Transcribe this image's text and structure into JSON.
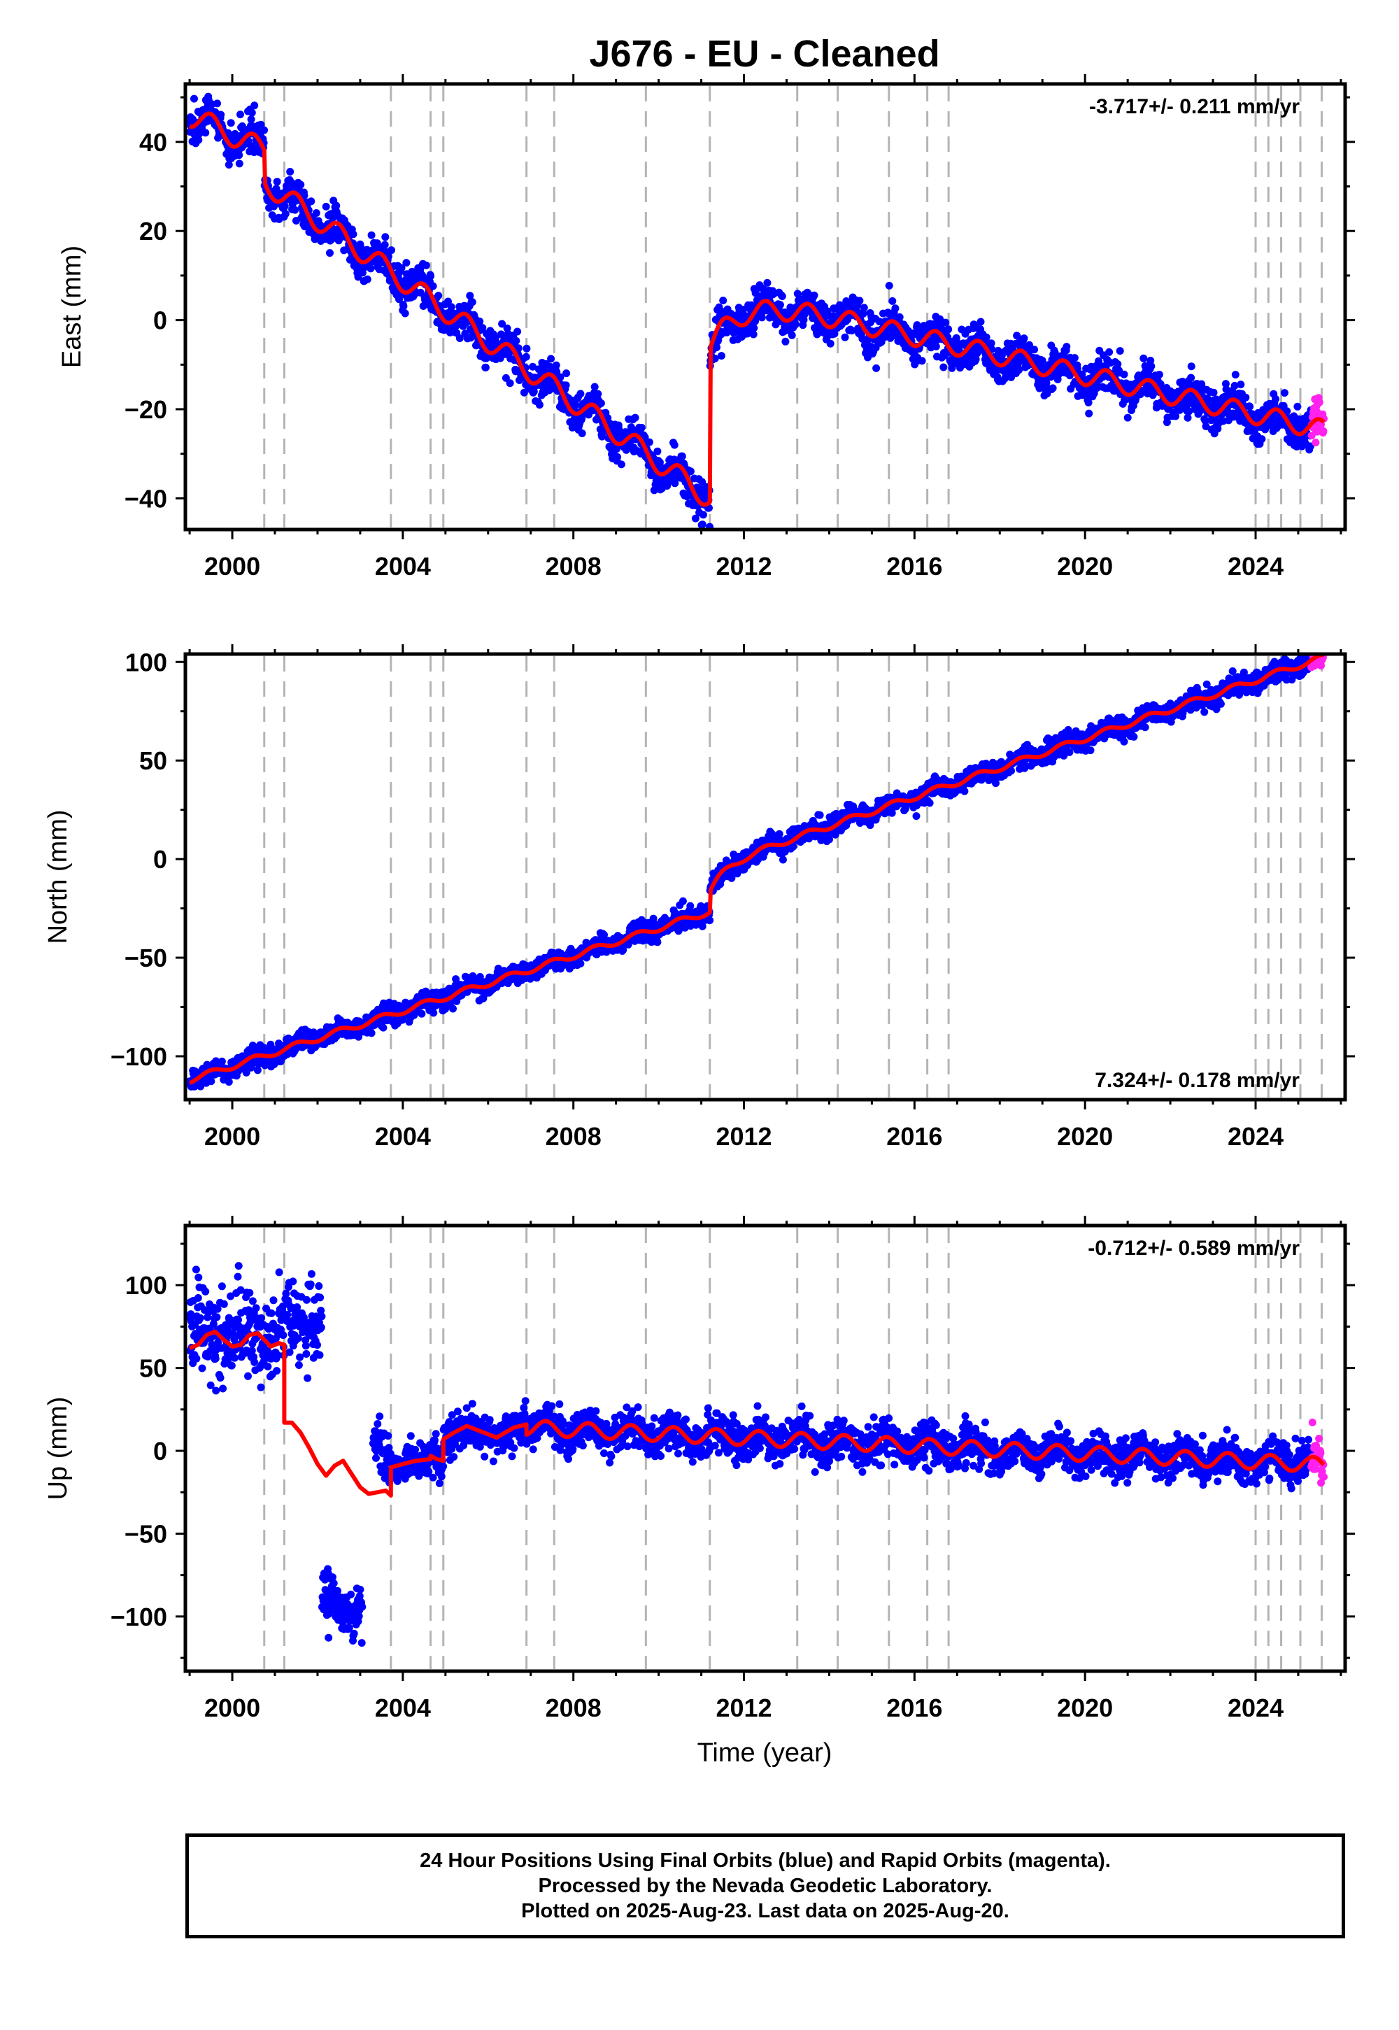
{
  "title": "J676  - EU - Cleaned",
  "colors": {
    "final_orbits": "#0000ff",
    "rapid_orbits": "#ff22ee",
    "model": "#ff0000",
    "break_lines": "#b4b4b4"
  },
  "chart_data": [
    {
      "type": "scatter",
      "panel": "east",
      "ylabel": "East (mm)",
      "xlabel": "",
      "rate_label": "-3.717+/- 0.211 mm/yr",
      "rate_label_position": "top-right",
      "xlim": [
        1998.9,
        2026.1
      ],
      "ylim": [
        -47,
        53
      ],
      "xticks": [
        2000,
        2004,
        2008,
        2012,
        2016,
        2020,
        2024
      ],
      "yticks": [
        40,
        20,
        0,
        -20,
        -40
      ],
      "ytick_labels": [
        "40",
        "20",
        "0",
        "−20",
        "−40"
      ],
      "grid": false,
      "breaks": [
        2000.75,
        2001.22,
        2003.72,
        2004.65,
        2004.95,
        2006.9,
        2007.55,
        2009.7,
        2011.2,
        2013.25,
        2014.2,
        2015.4,
        2016.3,
        2016.8,
        2024.0,
        2024.3,
        2024.6,
        2025.05,
        2025.55
      ],
      "model": [
        {
          "t0": 1999.0,
          "t1": 2000.75,
          "v0": 46,
          "rate": -4.5,
          "amp": 2.5
        },
        {
          "t0": 2000.75,
          "t1": 2011.2,
          "v0": 31,
          "rate": -6.8,
          "amp": 2.5
        },
        {
          "t0": 2011.2,
          "t1": 2025.6,
          "v0": -6,
          "rate": -2.2,
          "amp": 2.2,
          "postseismic_amp": 13,
          "postseismic_tau": 0.7
        }
      ],
      "final_orbits_last": 2025.3,
      "rapid_orbits": [
        2025.3,
        2025.6
      ],
      "noise": 2.2
    },
    {
      "type": "scatter",
      "panel": "north",
      "ylabel": "North (mm)",
      "xlabel": "",
      "rate_label": "7.324+/- 0.178 mm/yr",
      "rate_label_position": "bottom-right",
      "xlim": [
        1998.9,
        2026.1
      ],
      "ylim": [
        -122,
        104
      ],
      "xticks": [
        2000,
        2004,
        2008,
        2012,
        2016,
        2020,
        2024
      ],
      "yticks": [
        100,
        50,
        0,
        -50,
        -100
      ],
      "ytick_labels": [
        "100",
        "50",
        "0",
        "−50",
        "−100"
      ],
      "grid": false,
      "breaks": [
        2000.75,
        2001.22,
        2003.72,
        2004.65,
        2004.95,
        2006.9,
        2007.55,
        2009.7,
        2011.2,
        2013.25,
        2014.2,
        2015.4,
        2016.3,
        2016.8,
        2024.0,
        2024.3,
        2024.6,
        2025.05,
        2025.55
      ],
      "model": [
        {
          "t0": 1999.0,
          "t1": 2011.2,
          "v0": -112,
          "rate": 7.0,
          "amp": 1.5
        },
        {
          "t0": 2011.2,
          "t1": 2025.6,
          "v0": -16,
          "rate": 7.4,
          "amp": 1.5,
          "postseismic_amp": 12,
          "postseismic_tau": 0.4
        }
      ],
      "final_orbits_last": 2025.3,
      "rapid_orbits": [
        2025.3,
        2025.6
      ],
      "noise": 2.5
    },
    {
      "type": "scatter",
      "panel": "up",
      "ylabel": "Up (mm)",
      "xlabel": "Time (year)",
      "rate_label": "-0.712+/- 0.589 mm/yr",
      "rate_label_position": "top-right",
      "xlim": [
        1998.9,
        2026.1
      ],
      "ylim": [
        -133,
        136
      ],
      "xticks": [
        2000,
        2004,
        2008,
        2012,
        2016,
        2020,
        2024
      ],
      "yticks": [
        100,
        50,
        0,
        -50,
        -100
      ],
      "ytick_labels": [
        "100",
        "50",
        "0",
        "−50",
        "−100"
      ],
      "grid": false,
      "breaks": [
        2000.75,
        2001.22,
        2003.72,
        2004.65,
        2004.95,
        2006.9,
        2007.55,
        2009.7,
        2011.2,
        2013.25,
        2014.2,
        2015.4,
        2016.3,
        2016.8,
        2024.0,
        2024.3,
        2024.6,
        2025.05,
        2025.55
      ],
      "model_curve": [
        [
          1999.0,
          62
        ],
        [
          1999.2,
          64
        ],
        [
          1999.4,
          70
        ],
        [
          1999.6,
          72
        ],
        [
          1999.8,
          67
        ],
        [
          2000.0,
          63
        ],
        [
          2000.2,
          64
        ],
        [
          2000.4,
          70
        ],
        [
          2000.6,
          71
        ],
        [
          2000.75,
          67
        ],
        [
          2000.9,
          63
        ],
        [
          2001.1,
          65
        ],
        [
          2001.22,
          64
        ],
        [
          2001.22,
          17
        ],
        [
          2001.4,
          17
        ],
        [
          2001.6,
          11
        ],
        [
          2001.8,
          2
        ],
        [
          2002.0,
          -8
        ],
        [
          2002.2,
          -15
        ],
        [
          2002.4,
          -9
        ],
        [
          2002.6,
          -6
        ],
        [
          2002.8,
          -14
        ],
        [
          2003.0,
          -22
        ],
        [
          2003.2,
          -26
        ],
        [
          2003.4,
          -25
        ],
        [
          2003.6,
          -24
        ],
        [
          2003.72,
          -27
        ],
        [
          2003.72,
          -10
        ],
        [
          2004.0,
          -8
        ],
        [
          2004.3,
          -6
        ],
        [
          2004.65,
          -5
        ],
        [
          2004.65,
          -3
        ],
        [
          2004.8,
          -5
        ],
        [
          2004.95,
          -6
        ],
        [
          2004.95,
          7
        ],
        [
          2005.2,
          11
        ],
        [
          2005.5,
          15
        ],
        [
          2005.8,
          12
        ],
        [
          2006.2,
          8
        ],
        [
          2006.6,
          14
        ],
        [
          2006.9,
          16
        ]
      ],
      "model_tail": {
        "t0": 2006.9,
        "t1": 2025.6,
        "v0": 14,
        "rate": -1.2,
        "amp": 4.5
      },
      "gap": [
        2003.72,
        2003.72
      ],
      "segments": [
        {
          "t0": 1999.0,
          "t1": 2001.22,
          "mean": 72,
          "noise": 13
        },
        {
          "t0": 2001.22,
          "t1": 2002.1,
          "mean": 78,
          "noise": 12
        },
        {
          "t0": 2002.1,
          "t1": 2003.05,
          "mean": -92,
          "noise": 9
        },
        {
          "t0": 2003.3,
          "t1": 2003.72,
          "mean": 0,
          "noise": 7
        },
        {
          "t0": 2003.72,
          "t1": 2025.6,
          "mean": null,
          "noise": 6
        }
      ],
      "final_orbits_last": 2025.3,
      "rapid_orbits": [
        2025.3,
        2025.6
      ],
      "noise": 6
    }
  ],
  "footer": {
    "line1": "24 Hour Positions Using Final Orbits (blue) and Rapid Orbits (magenta).",
    "line2": "Processed by the Nevada Geodetic Laboratory.",
    "line3": "Plotted on 2025-Aug-23. Last data on 2025-Aug-20."
  }
}
